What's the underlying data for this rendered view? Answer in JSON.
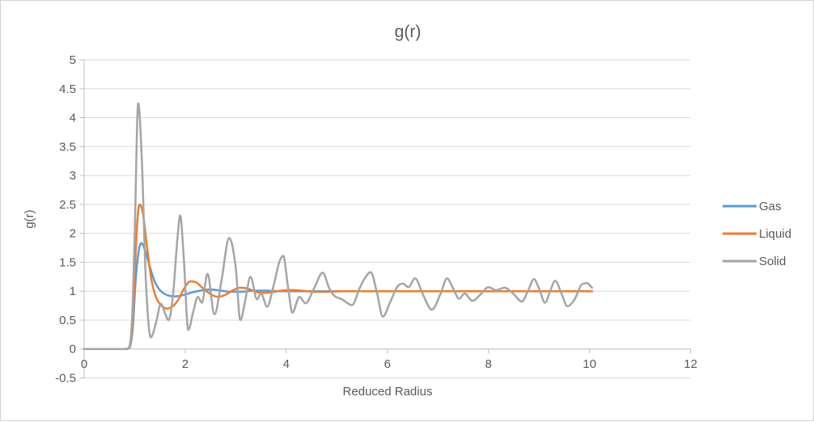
{
  "chart_data": {
    "type": "line",
    "title": "g(r)",
    "xlabel": "Reduced Radius",
    "ylabel": "g(r)",
    "xlim": [
      0,
      12
    ],
    "ylim": [
      -0.5,
      5
    ],
    "x_ticks": [
      0,
      2,
      4,
      6,
      8,
      10,
      12
    ],
    "y_ticks": [
      -0.5,
      0,
      0.5,
      1,
      1.5,
      2,
      2.5,
      3,
      3.5,
      4,
      4.5,
      5
    ],
    "grid": "horizontal-only",
    "legend_position": "right",
    "legend_entries": [
      "Gas",
      "Liquid",
      "Solid"
    ],
    "series": [
      {
        "name": "Gas",
        "color": "#5B9BD5",
        "points": [
          [
            0,
            0
          ],
          [
            0.4,
            0
          ],
          [
            0.82,
            0
          ],
          [
            0.9,
            0.03
          ],
          [
            0.96,
            0.35
          ],
          [
            1.02,
            1.2
          ],
          [
            1.08,
            1.7
          ],
          [
            1.13,
            1.83
          ],
          [
            1.2,
            1.72
          ],
          [
            1.3,
            1.42
          ],
          [
            1.4,
            1.16
          ],
          [
            1.52,
            1
          ],
          [
            1.65,
            0.93
          ],
          [
            1.8,
            0.91
          ],
          [
            1.95,
            0.93
          ],
          [
            2.1,
            0.97
          ],
          [
            2.3,
            1.01
          ],
          [
            2.5,
            1.03
          ],
          [
            2.7,
            1.01
          ],
          [
            2.9,
            0.99
          ],
          [
            3.1,
            0.99
          ],
          [
            3.35,
            1.01
          ],
          [
            3.6,
            1.01
          ],
          [
            3.85,
            1
          ],
          [
            4.2,
            1
          ],
          [
            4.6,
            1
          ],
          [
            5,
            1
          ],
          [
            5.5,
            1
          ],
          [
            6,
            1
          ],
          [
            6.5,
            1
          ],
          [
            7,
            1
          ],
          [
            7.5,
            1
          ],
          [
            8,
            1
          ],
          [
            8.5,
            1
          ],
          [
            9,
            1
          ],
          [
            9.5,
            1
          ],
          [
            10.05,
            1
          ]
        ]
      },
      {
        "name": "Liquid",
        "color": "#ED7D31",
        "points": [
          [
            0,
            0
          ],
          [
            0.4,
            0
          ],
          [
            0.83,
            0
          ],
          [
            0.9,
            0.05
          ],
          [
            0.96,
            0.5
          ],
          [
            1.01,
            1.5
          ],
          [
            1.06,
            2.3
          ],
          [
            1.1,
            2.5
          ],
          [
            1.16,
            2.35
          ],
          [
            1.24,
            1.8
          ],
          [
            1.33,
            1.2
          ],
          [
            1.43,
            0.88
          ],
          [
            1.53,
            0.75
          ],
          [
            1.63,
            0.7
          ],
          [
            1.74,
            0.73
          ],
          [
            1.86,
            0.85
          ],
          [
            1.98,
            1.05
          ],
          [
            2.1,
            1.17
          ],
          [
            2.22,
            1.15
          ],
          [
            2.35,
            1.05
          ],
          [
            2.5,
            0.95
          ],
          [
            2.65,
            0.9
          ],
          [
            2.8,
            0.94
          ],
          [
            2.95,
            1.02
          ],
          [
            3.1,
            1.06
          ],
          [
            3.25,
            1.04
          ],
          [
            3.4,
            0.99
          ],
          [
            3.55,
            0.97
          ],
          [
            3.7,
            0.98
          ],
          [
            3.9,
            1.01
          ],
          [
            4.1,
            1.02
          ],
          [
            4.3,
            1.01
          ],
          [
            4.55,
            0.99
          ],
          [
            4.8,
            0.99
          ],
          [
            5.1,
            1
          ],
          [
            5.5,
            1
          ],
          [
            6,
            1
          ],
          [
            6.5,
            1
          ],
          [
            7,
            1
          ],
          [
            7.5,
            1
          ],
          [
            8,
            1
          ],
          [
            8.5,
            1
          ],
          [
            9,
            1
          ],
          [
            9.5,
            1
          ],
          [
            10.05,
            1
          ]
        ]
      },
      {
        "name": "Solid",
        "color": "#A5A5A5",
        "points": [
          [
            0,
            0
          ],
          [
            0.4,
            0
          ],
          [
            0.8,
            0
          ],
          [
            0.88,
            0.02
          ],
          [
            0.95,
            0.55
          ],
          [
            1,
            2
          ],
          [
            1.07,
            4.25
          ],
          [
            1.14,
            3.3
          ],
          [
            1.22,
            1.2
          ],
          [
            1.32,
            0.2
          ],
          [
            1.42,
            0.45
          ],
          [
            1.52,
            0.78
          ],
          [
            1.6,
            0.62
          ],
          [
            1.67,
            0.5
          ],
          [
            1.76,
            0.95
          ],
          [
            1.84,
            1.85
          ],
          [
            1.9,
            2.31
          ],
          [
            1.97,
            1.6
          ],
          [
            2.06,
            0.33
          ],
          [
            2.16,
            0.65
          ],
          [
            2.25,
            0.9
          ],
          [
            2.33,
            0.8
          ],
          [
            2.44,
            1.3
          ],
          [
            2.58,
            0.6
          ],
          [
            2.72,
            1.2
          ],
          [
            2.87,
            1.92
          ],
          [
            3,
            1.4
          ],
          [
            3.09,
            0.5
          ],
          [
            3.19,
            0.85
          ],
          [
            3.29,
            1.25
          ],
          [
            3.42,
            0.86
          ],
          [
            3.5,
            0.96
          ],
          [
            3.62,
            0.73
          ],
          [
            3.75,
            1.1
          ],
          [
            3.86,
            1.5
          ],
          [
            3.94,
            1.61
          ],
          [
            4.03,
            1.1
          ],
          [
            4.12,
            0.63
          ],
          [
            4.26,
            0.9
          ],
          [
            4.38,
            0.79
          ],
          [
            4.55,
            1.05
          ],
          [
            4.72,
            1.32
          ],
          [
            4.85,
            1.05
          ],
          [
            4.95,
            0.92
          ],
          [
            5.1,
            0.86
          ],
          [
            5.3,
            0.76
          ],
          [
            5.45,
            1.05
          ],
          [
            5.55,
            1.22
          ],
          [
            5.67,
            1.33
          ],
          [
            5.8,
            0.95
          ],
          [
            5.91,
            0.56
          ],
          [
            6.05,
            0.8
          ],
          [
            6.2,
            1.08
          ],
          [
            6.31,
            1.13
          ],
          [
            6.41,
            1.07
          ],
          [
            6.55,
            1.22
          ],
          [
            6.7,
            0.95
          ],
          [
            6.88,
            0.68
          ],
          [
            7.05,
            0.95
          ],
          [
            7.18,
            1.22
          ],
          [
            7.3,
            1.05
          ],
          [
            7.42,
            0.87
          ],
          [
            7.53,
            0.96
          ],
          [
            7.68,
            0.83
          ],
          [
            7.85,
            0.95
          ],
          [
            8,
            1.07
          ],
          [
            8.15,
            1.02
          ],
          [
            8.32,
            1.06
          ],
          [
            8.5,
            0.95
          ],
          [
            8.66,
            0.82
          ],
          [
            8.78,
            1
          ],
          [
            8.9,
            1.21
          ],
          [
            9,
            1.05
          ],
          [
            9.12,
            0.8
          ],
          [
            9.22,
            1
          ],
          [
            9.32,
            1.18
          ],
          [
            9.45,
            0.95
          ],
          [
            9.56,
            0.74
          ],
          [
            9.7,
            0.85
          ],
          [
            9.85,
            1.12
          ],
          [
            9.95,
            1.14
          ],
          [
            10.05,
            1.06
          ]
        ]
      }
    ]
  },
  "colors": {
    "grid": "#D9D9D9",
    "axis": "#BFBFBF",
    "text": "#595959",
    "border": "#D3D3D3",
    "background": "#FFFFFF"
  }
}
